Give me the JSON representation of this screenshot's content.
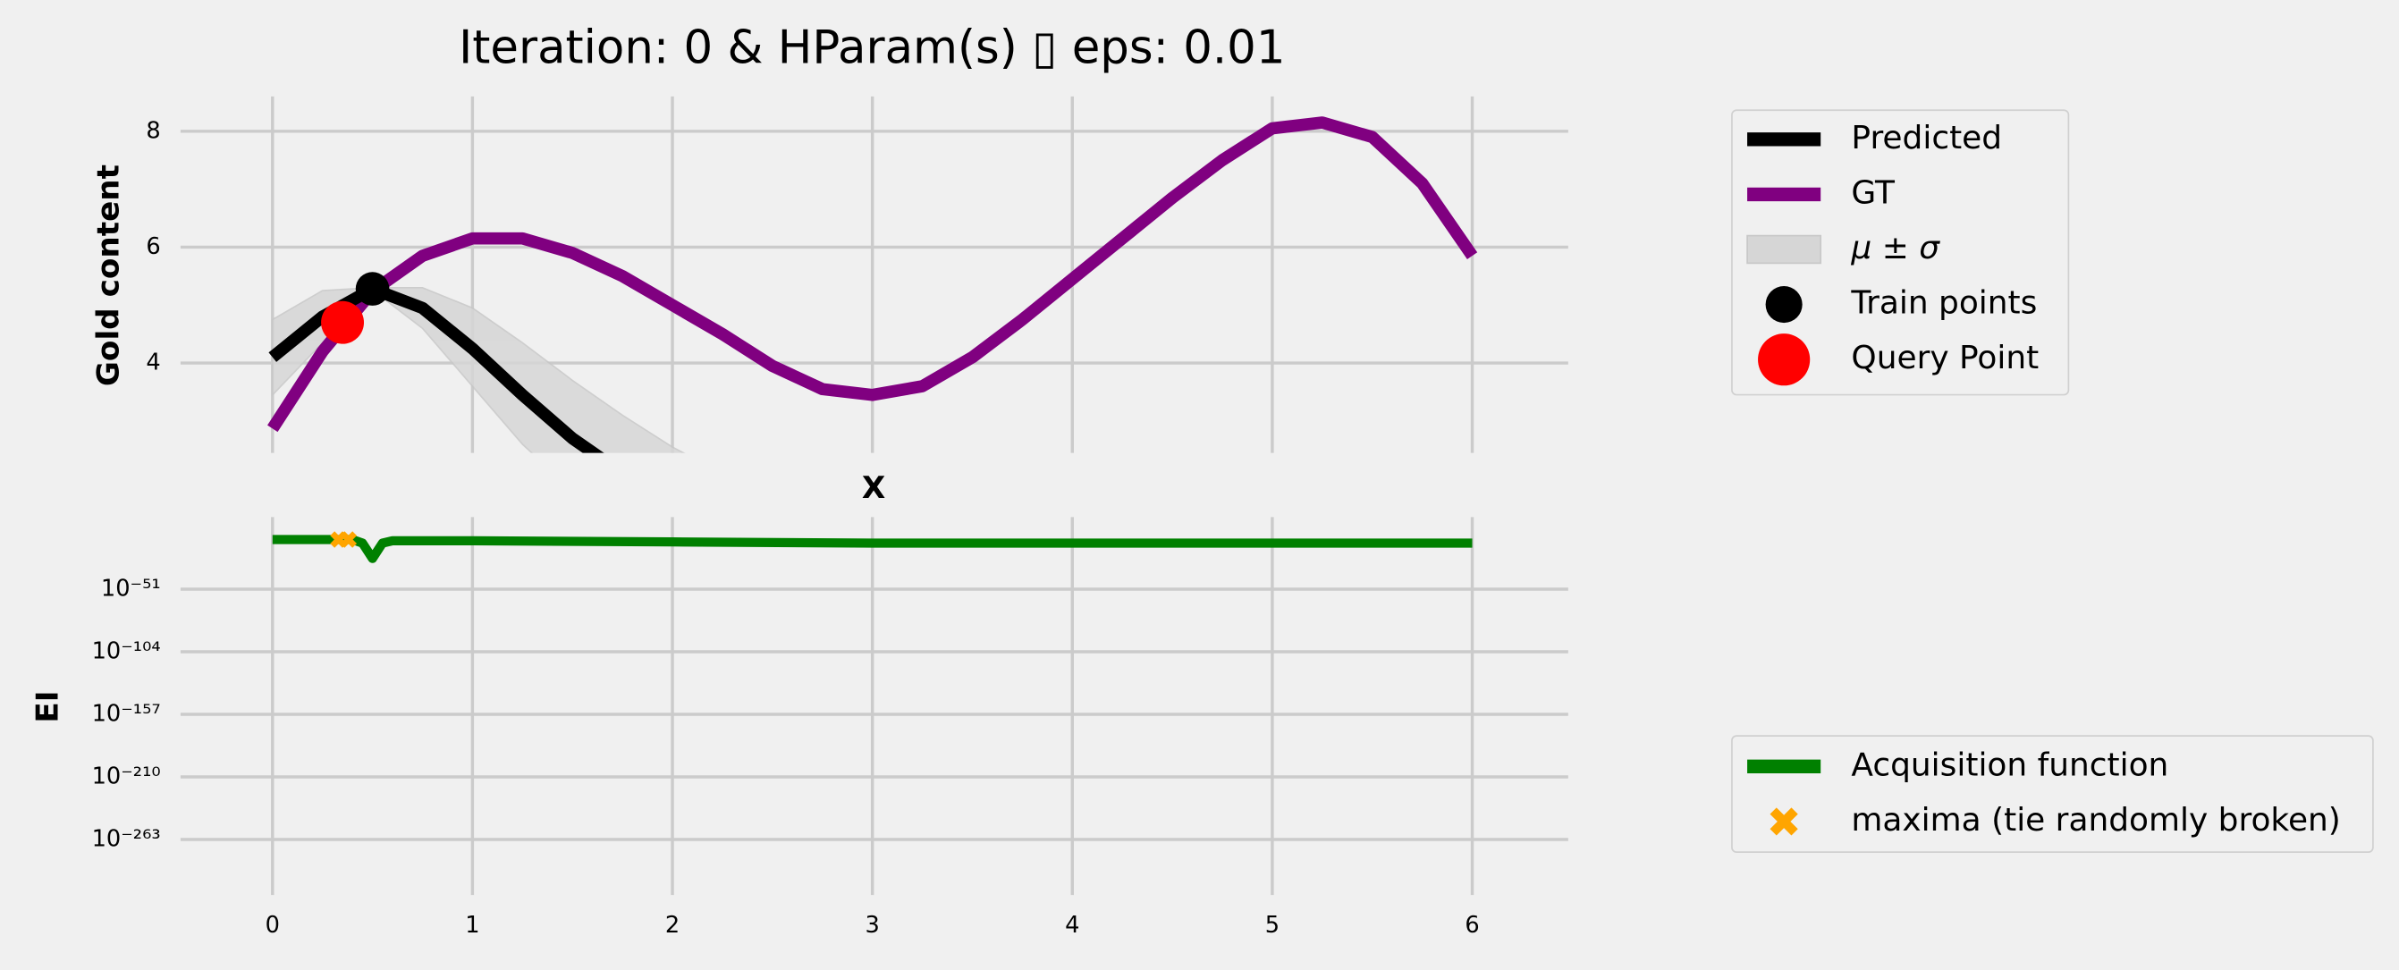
{
  "chart_data": [
    {
      "type": "line",
      "title": "Iteration: 0 & HParam(s) ▯ eps: 0.01",
      "xlabel": "X",
      "ylabel": "Gold content",
      "xlim": [
        -0.46,
        6.48
      ],
      "ylim": [
        2.45,
        8.6
      ],
      "xticks": [
        0,
        1,
        2,
        3,
        4,
        5,
        6
      ],
      "yticks": [
        4,
        6,
        8
      ],
      "show_xtick_labels": false,
      "grid": true,
      "series": [
        {
          "name": "Predicted",
          "kind": "line",
          "color": "#000000",
          "x": [
            0,
            0.25,
            0.5,
            0.75,
            1,
            1.25,
            1.5,
            1.75
          ],
          "values": [
            4.1,
            4.8,
            5.28,
            4.95,
            4.25,
            3.45,
            2.7,
            2.1
          ]
        },
        {
          "name": "GT",
          "kind": "line",
          "color": "#800080",
          "x": [
            0,
            0.25,
            0.5,
            0.75,
            1,
            1.25,
            1.5,
            1.75,
            2,
            2.25,
            2.5,
            2.75,
            3,
            3.25,
            3.5,
            3.75,
            4,
            4.25,
            4.5,
            4.75,
            5,
            5.25,
            5.5,
            5.75,
            6
          ],
          "values": [
            2.87,
            4.2,
            5.24,
            5.85,
            6.15,
            6.15,
            5.9,
            5.5,
            5.0,
            4.5,
            3.95,
            3.55,
            3.45,
            3.6,
            4.1,
            4.75,
            5.45,
            6.15,
            6.85,
            7.5,
            8.05,
            8.15,
            7.9,
            7.1,
            5.85
          ]
        },
        {
          "name": "μ ± σ",
          "kind": "band",
          "color": "#d6d6d6",
          "x": [
            0,
            0.25,
            0.5,
            0.75,
            1,
            1.25,
            1.5,
            1.75,
            2,
            2.25
          ],
          "upper": [
            4.75,
            5.25,
            5.3,
            5.3,
            4.95,
            4.35,
            3.7,
            3.1,
            2.55,
            2.1
          ],
          "lower": [
            3.45,
            4.35,
            5.26,
            4.6,
            3.6,
            2.6,
            1.8,
            1.1,
            0.5,
            0
          ]
        },
        {
          "name": "Train points",
          "kind": "scatter",
          "color": "#000000",
          "x": [
            0.5
          ],
          "values": [
            5.28
          ]
        },
        {
          "name": "Query Point",
          "kind": "scatter",
          "color": "#ff0000",
          "x": [
            0.35
          ],
          "values": [
            4.7
          ]
        }
      ]
    },
    {
      "type": "line",
      "ylabel": "EI",
      "yscale": "log",
      "xlim": [
        -0.46,
        6.48
      ],
      "ylim": [
        1e-310,
        10000000000.0
      ],
      "xticks": [
        0,
        1,
        2,
        3,
        4,
        5,
        6
      ],
      "yticks": [
        {
          "value": 1e-51,
          "label": "10⁻⁵¹"
        },
        {
          "value": 1e-104,
          "label": "10⁻¹⁰⁴"
        },
        {
          "value": 1e-157,
          "label": "10⁻¹⁵⁷"
        },
        {
          "value": 1e-210,
          "label": "10⁻²¹⁰"
        },
        {
          "value": 1e-263,
          "label": "10⁻²⁶³"
        }
      ],
      "show_xtick_labels": true,
      "grid": true,
      "series": [
        {
          "name": "Acquisition function",
          "kind": "line",
          "color": "#008000",
          "x": [
            0,
            0.25,
            0.4,
            0.45,
            0.5,
            0.55,
            0.6,
            1,
            2,
            3,
            4,
            5,
            6
          ],
          "values": [
            1e-09,
            1e-09,
            1e-09,
            1e-12,
            1e-25,
            1e-12,
            1e-10,
            1e-10,
            1e-11,
            1e-12,
            1e-12,
            1e-12,
            1e-12
          ]
        },
        {
          "name": "maxima (tie randomly broken)",
          "kind": "scatter-x",
          "color": "#ffa500",
          "x": [
            0.33,
            0.38
          ],
          "values": [
            1e-09,
            1e-09
          ]
        }
      ]
    }
  ]
}
